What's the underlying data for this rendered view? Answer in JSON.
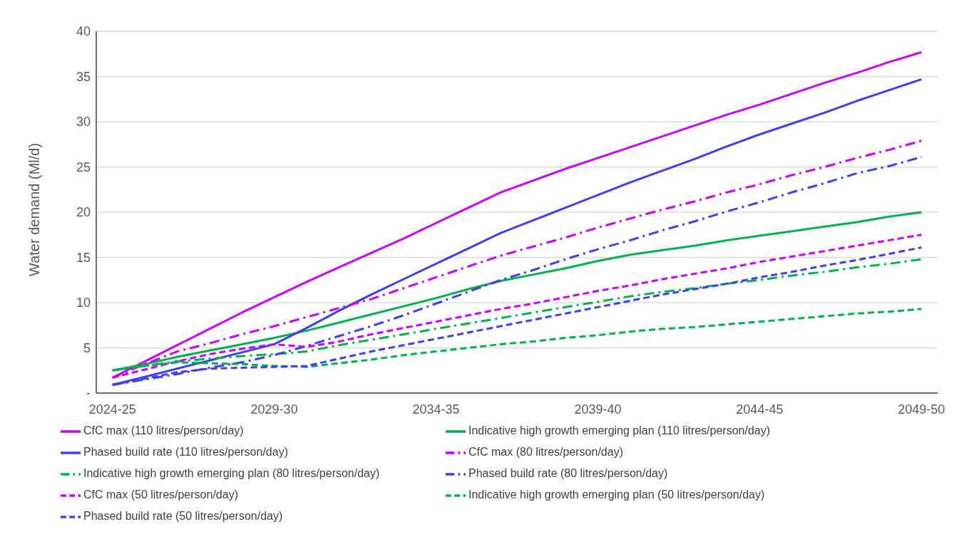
{
  "chart_data": {
    "type": "line",
    "ylabel": "Water demand (Ml/d)",
    "categories": [
      "2024-25",
      null,
      null,
      null,
      null,
      "2029-30",
      null,
      null,
      null,
      null,
      "2034-35",
      null,
      null,
      null,
      null,
      "2039-40",
      null,
      null,
      null,
      null,
      "2044-45",
      null,
      null,
      null,
      null,
      "2049-50"
    ],
    "series": [
      {
        "name": "CfC max (110 litres/person/day)",
        "color": "#c800ff",
        "line_style": "solid",
        "values": [
          1.7,
          3.5,
          5.3,
          7.1,
          8.9,
          10.6,
          12.3,
          13.9,
          15.5,
          17.1,
          18.8,
          20.5,
          22.2,
          23.5,
          24.8,
          26.0,
          27.2,
          28.4,
          29.6,
          30.8,
          31.9,
          33.1,
          34.3,
          35.4,
          36.6,
          37.7
        ]
      },
      {
        "name": "Indicative high growth emerging plan (110 litres/person/day)",
        "color": "#00b050",
        "line_style": "solid",
        "values": [
          2.5,
          3.2,
          4.0,
          4.7,
          5.4,
          6.1,
          6.9,
          7.8,
          8.7,
          9.6,
          10.5,
          11.5,
          12.4,
          13.1,
          13.8,
          14.6,
          15.3,
          15.8,
          16.3,
          16.9,
          17.4,
          17.9,
          18.4,
          18.9,
          19.5,
          20.0
        ]
      },
      {
        "name": "Phased build rate (110 litres/person/day)",
        "color": "#3f3ff0",
        "line_style": "solid",
        "values": [
          0.9,
          1.8,
          2.7,
          3.6,
          4.5,
          5.4,
          7.2,
          9.1,
          10.9,
          12.6,
          14.3,
          16.0,
          17.7,
          19.1,
          20.5,
          21.9,
          23.3,
          24.6,
          25.9,
          27.3,
          28.6,
          29.8,
          31.0,
          32.3,
          33.5,
          34.7
        ]
      },
      {
        "name": "CfC max (80 litres/person/day)",
        "color": "#c800ff",
        "line_style": "dashdot",
        "values": [
          1.7,
          3.2,
          4.6,
          5.5,
          6.5,
          7.4,
          8.4,
          9.4,
          10.4,
          11.6,
          12.8,
          14.0,
          15.2,
          16.2,
          17.2,
          18.3,
          19.3,
          20.3,
          21.2,
          22.2,
          23.1,
          24.1,
          25.0,
          26.0,
          26.9,
          27.9
        ]
      },
      {
        "name": "Indicative high growth emerging plan (80 litres/person/day)",
        "color": "#00b050",
        "line_style": "dashdot",
        "values": [
          2.5,
          3.0,
          3.5,
          3.8,
          4.1,
          4.3,
          4.6,
          5.3,
          5.9,
          6.5,
          7.1,
          7.7,
          8.3,
          8.9,
          9.5,
          10.1,
          10.7,
          11.2,
          11.6,
          12.1,
          12.5,
          13.0,
          13.4,
          13.9,
          14.3,
          14.8
        ]
      },
      {
        "name": "Phased build rate (80 litres/person/day)",
        "color": "#3f3ff0",
        "line_style": "dashdot",
        "values": [
          0.9,
          1.5,
          2.1,
          2.8,
          3.4,
          4.2,
          5.2,
          6.3,
          7.4,
          8.6,
          9.9,
          11.2,
          12.5,
          13.6,
          14.8,
          15.9,
          16.9,
          18.0,
          19.0,
          20.1,
          21.1,
          22.2,
          23.2,
          24.3,
          25.1,
          26.1
        ]
      },
      {
        "name": "CfC max (50 litres/person/day)",
        "color": "#c800ff",
        "line_style": "dashed",
        "values": [
          1.7,
          2.6,
          3.5,
          4.3,
          4.9,
          5.4,
          5.1,
          5.7,
          6.5,
          7.2,
          7.9,
          8.6,
          9.3,
          9.9,
          10.6,
          11.3,
          11.9,
          12.6,
          13.2,
          13.8,
          14.5,
          15.1,
          15.7,
          16.3,
          16.9,
          17.5
        ]
      },
      {
        "name": "Indicative high growth emerging plan (50 litres/person/day)",
        "color": "#00b050",
        "line_style": "dashed",
        "values": [
          2.5,
          3.0,
          3.4,
          3.3,
          3.2,
          3.0,
          2.9,
          3.3,
          3.7,
          4.2,
          4.6,
          5.0,
          5.4,
          5.7,
          6.1,
          6.4,
          6.8,
          7.1,
          7.3,
          7.6,
          7.9,
          8.2,
          8.5,
          8.8,
          9.0,
          9.3
        ]
      },
      {
        "name": "Phased build rate (50 litres/person/day)",
        "color": "#3f3ff0",
        "line_style": "dashed",
        "values": [
          0.9,
          1.6,
          2.3,
          2.7,
          2.8,
          2.9,
          3.0,
          3.8,
          4.6,
          5.3,
          6.0,
          6.7,
          7.4,
          8.1,
          8.8,
          9.5,
          10.2,
          10.9,
          11.5,
          12.1,
          12.8,
          13.4,
          14.1,
          14.7,
          15.4,
          16.1
        ]
      }
    ],
    "ylim": [
      0,
      40
    ],
    "yticks": [
      {
        "value": 0,
        "label": "-"
      },
      5,
      10,
      15,
      20,
      25,
      30,
      35,
      40
    ],
    "grid": "y",
    "legend": "bottom",
    "marker": "none"
  }
}
